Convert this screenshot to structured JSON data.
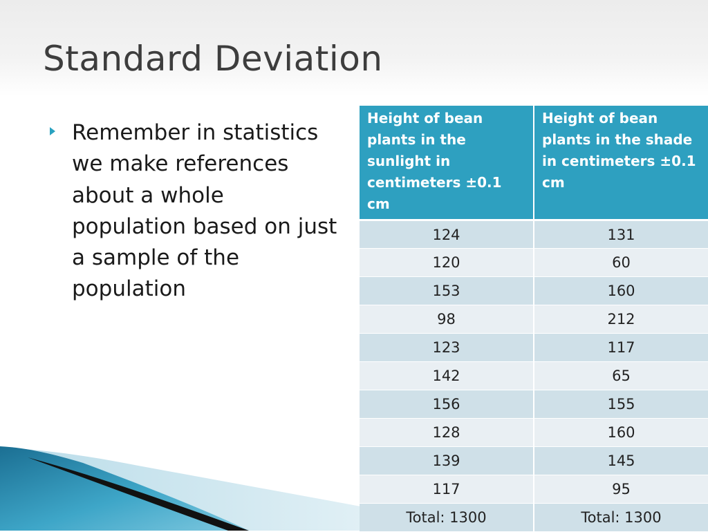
{
  "slide": {
    "title": "Standard Deviation",
    "bullet": "Remember in statistics we make references about a whole population based on just a sample of the population"
  },
  "table": {
    "headers": [
      "Height of bean plants in the sunlight in centimeters ±0.1 cm",
      "Height of bean plants in the shade in centimeters ±0.1 cm"
    ],
    "rows": [
      [
        "124",
        "131"
      ],
      [
        "120",
        "60"
      ],
      [
        "153",
        "160"
      ],
      [
        "98",
        "212"
      ],
      [
        "123",
        "117"
      ],
      [
        "142",
        "65"
      ],
      [
        "156",
        "155"
      ],
      [
        "128",
        "160"
      ],
      [
        "139",
        "145"
      ],
      [
        "117",
        "95"
      ],
      [
        "Total:  1300",
        "Total:  1300"
      ]
    ]
  },
  "colors": {
    "accent": "#2ea0c0",
    "row_dark": "#cfe0e8",
    "row_light": "#e9eff3",
    "title_text": "#3d3d3d"
  }
}
